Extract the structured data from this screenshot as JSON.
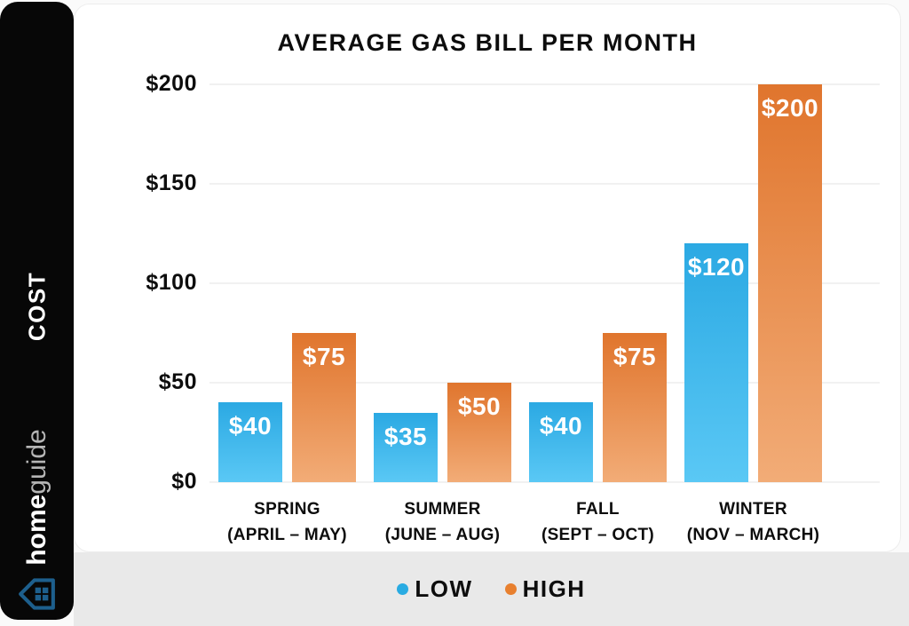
{
  "sidebar": {
    "category_label": "COST",
    "brand_bold": "home",
    "brand_light": "guide",
    "colors": {
      "background": "#070707",
      "icon_blue": "#1d5f8d",
      "brand_light_text": "#b5b5b5"
    }
  },
  "chart_data": {
    "type": "bar",
    "title": "AVERAGE GAS BILL PER MONTH",
    "categories": [
      "SPRING",
      "SUMMER",
      "FALL",
      "WINTER"
    ],
    "category_sublabels": [
      "(APRIL – MAY)",
      "(JUNE – AUG)",
      "(SEPT – OCT)",
      "(NOV – MARCH)"
    ],
    "series": [
      {
        "name": "LOW",
        "values": [
          40,
          35,
          40,
          120
        ],
        "labels": [
          "$40",
          "$35",
          "$40",
          "$120"
        ],
        "color_top": "#2BA9E3",
        "color_bottom": "#5AC8F5",
        "legend_color": "#29ABE2"
      },
      {
        "name": "HIGH",
        "values": [
          75,
          50,
          75,
          200
        ],
        "labels": [
          "$75",
          "$50",
          "$75",
          "$200"
        ],
        "color_top": "#E0752D",
        "color_bottom": "#F2AC77",
        "legend_color": "#E8802F"
      }
    ],
    "ylim": [
      0,
      200
    ],
    "yticks": [
      {
        "value": 0,
        "label": "$0"
      },
      {
        "value": 50,
        "label": "$50"
      },
      {
        "value": 100,
        "label": "$100"
      },
      {
        "value": 150,
        "label": "$150"
      },
      {
        "value": 200,
        "label": "$200"
      }
    ],
    "grid": true,
    "legend_position": "bottom"
  }
}
